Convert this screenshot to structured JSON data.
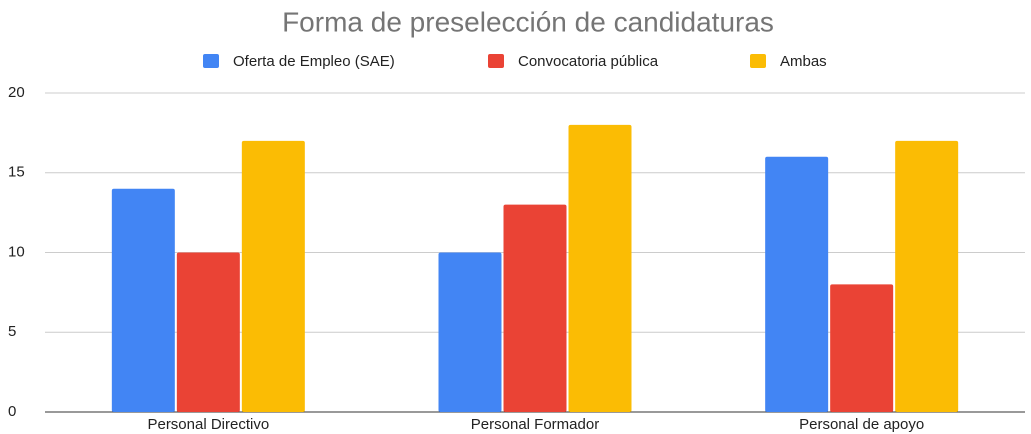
{
  "chart_data": {
    "type": "bar",
    "title": "Forma de preselección de candidaturas",
    "categories": [
      "Personal Directivo",
      "Personal Formador",
      "Personal de apoyo"
    ],
    "series": [
      {
        "name": "Oferta de Empleo (SAE)",
        "color": "#4285f4",
        "values": [
          14,
          10,
          16
        ]
      },
      {
        "name": "Convocatoria pública",
        "color": "#ea4335",
        "values": [
          10,
          13,
          8
        ]
      },
      {
        "name": "Ambas",
        "color": "#fbbc04",
        "values": [
          17,
          18,
          17
        ]
      }
    ],
    "ylim": [
      0,
      20
    ],
    "yticks": [
      0,
      5,
      10,
      15,
      20
    ],
    "grid": true,
    "legend": "top"
  }
}
